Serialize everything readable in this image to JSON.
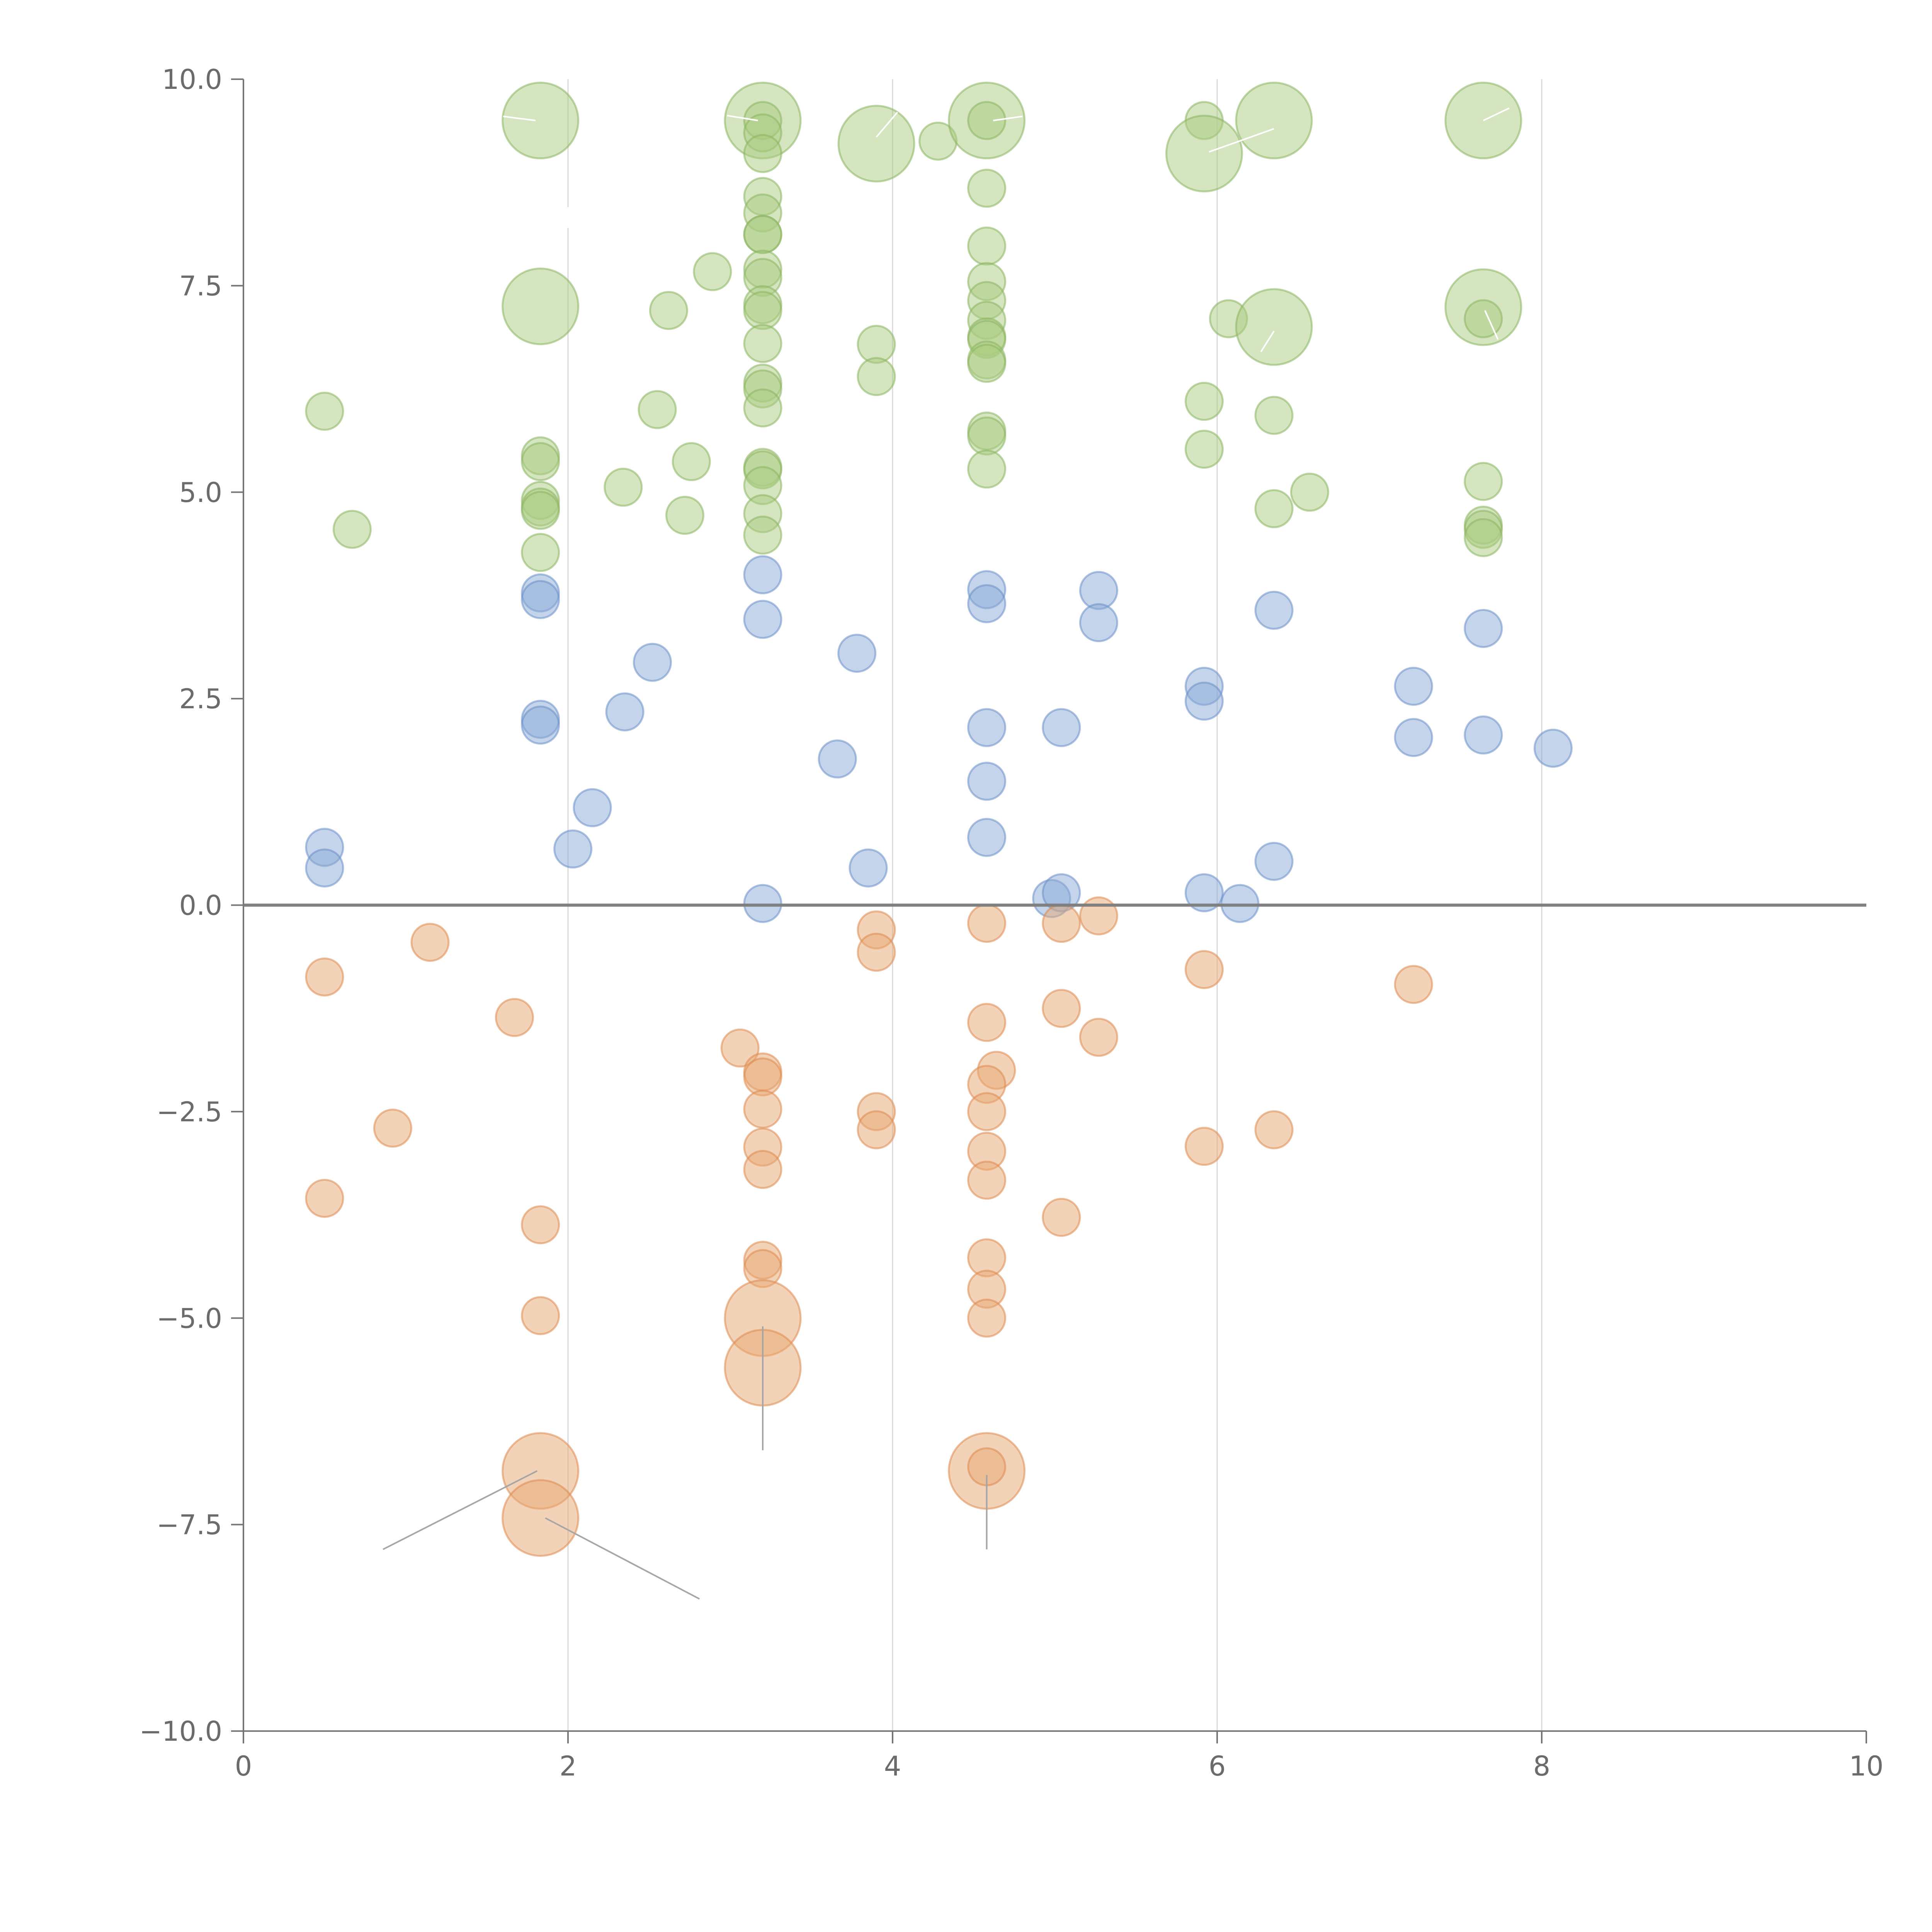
{
  "chart_data": {
    "type": "scatter",
    "title": "",
    "xlabel": "",
    "ylabel": "",
    "xlim": [
      0,
      10
    ],
    "ylim": [
      -10,
      10
    ],
    "x_ticks": [
      0,
      2,
      4,
      6,
      8,
      10
    ],
    "y_ticks": [
      -10,
      -7.5,
      -5,
      -2.5,
      0,
      2.5,
      5,
      7.5,
      10
    ],
    "x_tick_labels": [
      "0",
      "2",
      "4",
      "6",
      "8",
      "10"
    ],
    "y_tick_labels": [
      "−10.0",
      "−7.5",
      "−5.0",
      "−2.5",
      "0.0",
      "2.5",
      "5.0",
      "7.5",
      "10.0"
    ],
    "grid_x": [
      2,
      4,
      6,
      8
    ],
    "zero_line": 0,
    "colors": {
      "green_fill": "#a9cb7f",
      "green_stroke": "#8ab460",
      "blue_fill": "#8aa9d6",
      "blue_stroke": "#6b8fc8",
      "orange_fill": "#e8a772",
      "orange_stroke": "#dd8a50",
      "axis": "#777777",
      "grid": "#d9d9d9",
      "zero_line": "#808080",
      "leader_white": "#ffffff",
      "leader_gray": "#a6a6a6",
      "label": "#ffffff"
    },
    "series": [
      {
        "name": "green",
        "color_key": "green",
        "points": [
          {
            "x": 0.5,
            "y": 5.98,
            "s": 1
          },
          {
            "x": 0.67,
            "y": 4.55,
            "s": 1
          },
          {
            "x": 1.83,
            "y": 9.5,
            "s": 2
          },
          {
            "x": 1.83,
            "y": 7.25,
            "s": 2
          },
          {
            "x": 1.83,
            "y": 5.44,
            "s": 1
          },
          {
            "x": 1.83,
            "y": 5.37,
            "s": 1
          },
          {
            "x": 1.83,
            "y": 4.9,
            "s": 1
          },
          {
            "x": 1.83,
            "y": 4.82,
            "s": 1
          },
          {
            "x": 1.83,
            "y": 4.78,
            "s": 1
          },
          {
            "x": 1.83,
            "y": 4.27,
            "s": 1
          },
          {
            "x": 2.34,
            "y": 5.06,
            "s": 1
          },
          {
            "x": 2.55,
            "y": 6.0,
            "s": 1
          },
          {
            "x": 2.62,
            "y": 7.2,
            "s": 1
          },
          {
            "x": 2.72,
            "y": 4.72,
            "s": 1
          },
          {
            "x": 2.76,
            "y": 5.37,
            "s": 1
          },
          {
            "x": 2.89,
            "y": 7.67,
            "s": 1
          },
          {
            "x": 3.2,
            "y": 9.5,
            "s": 2
          },
          {
            "x": 3.2,
            "y": 9.5,
            "s": 1
          },
          {
            "x": 3.2,
            "y": 9.35,
            "s": 1
          },
          {
            "x": 3.2,
            "y": 9.1,
            "s": 1
          },
          {
            "x": 3.2,
            "y": 8.58,
            "s": 1
          },
          {
            "x": 3.2,
            "y": 8.38,
            "s": 1
          },
          {
            "x": 3.2,
            "y": 8.12,
            "s": 1
          },
          {
            "x": 3.2,
            "y": 8.12,
            "s": 1
          },
          {
            "x": 3.2,
            "y": 7.7,
            "s": 1
          },
          {
            "x": 3.2,
            "y": 7.6,
            "s": 1
          },
          {
            "x": 3.2,
            "y": 7.27,
            "s": 1
          },
          {
            "x": 3.2,
            "y": 7.2,
            "s": 1
          },
          {
            "x": 3.2,
            "y": 6.8,
            "s": 1
          },
          {
            "x": 3.2,
            "y": 6.32,
            "s": 1
          },
          {
            "x": 3.2,
            "y": 6.25,
            "s": 1
          },
          {
            "x": 3.2,
            "y": 6.02,
            "s": 1
          },
          {
            "x": 3.2,
            "y": 5.3,
            "s": 1
          },
          {
            "x": 3.2,
            "y": 5.27,
            "s": 1
          },
          {
            "x": 3.2,
            "y": 5.08,
            "s": 1
          },
          {
            "x": 3.2,
            "y": 4.74,
            "s": 1
          },
          {
            "x": 3.2,
            "y": 4.48,
            "s": 1
          },
          {
            "x": 3.9,
            "y": 9.22,
            "s": 2
          },
          {
            "x": 3.9,
            "y": 6.79,
            "s": 1
          },
          {
            "x": 3.9,
            "y": 6.4,
            "s": 1
          },
          {
            "x": 4.28,
            "y": 9.25,
            "s": 1
          },
          {
            "x": 4.58,
            "y": 9.5,
            "s": 2
          },
          {
            "x": 4.58,
            "y": 9.5,
            "s": 1
          },
          {
            "x": 4.58,
            "y": 8.68,
            "s": 1
          },
          {
            "x": 4.58,
            "y": 7.98,
            "s": 1
          },
          {
            "x": 4.58,
            "y": 7.55,
            "s": 1
          },
          {
            "x": 4.58,
            "y": 7.32,
            "s": 1
          },
          {
            "x": 4.58,
            "y": 7.08,
            "s": 1
          },
          {
            "x": 4.58,
            "y": 6.88,
            "s": 1
          },
          {
            "x": 4.58,
            "y": 6.85,
            "s": 1
          },
          {
            "x": 4.58,
            "y": 6.6,
            "s": 1
          },
          {
            "x": 4.58,
            "y": 6.56,
            "s": 1
          },
          {
            "x": 4.58,
            "y": 5.74,
            "s": 1
          },
          {
            "x": 4.58,
            "y": 5.68,
            "s": 1
          },
          {
            "x": 4.58,
            "y": 5.28,
            "s": 1
          },
          {
            "x": 5.92,
            "y": 9.5,
            "s": 1
          },
          {
            "x": 5.92,
            "y": 9.1,
            "s": 2
          },
          {
            "x": 5.92,
            "y": 6.1,
            "s": 1
          },
          {
            "x": 5.92,
            "y": 5.52,
            "s": 1
          },
          {
            "x": 6.07,
            "y": 7.1,
            "s": 1
          },
          {
            "x": 6.35,
            "y": 9.5,
            "s": 2
          },
          {
            "x": 6.35,
            "y": 7.0,
            "s": 2
          },
          {
            "x": 6.35,
            "y": 5.93,
            "s": 1
          },
          {
            "x": 6.35,
            "y": 4.8,
            "s": 1
          },
          {
            "x": 6.57,
            "y": 5.0,
            "s": 1
          },
          {
            "x": 7.64,
            "y": 9.5,
            "s": 2
          },
          {
            "x": 7.64,
            "y": 7.24,
            "s": 2
          },
          {
            "x": 7.64,
            "y": 7.1,
            "s": 1
          },
          {
            "x": 7.64,
            "y": 5.13,
            "s": 1
          },
          {
            "x": 7.64,
            "y": 4.6,
            "s": 1
          },
          {
            "x": 7.64,
            "y": 4.55,
            "s": 1
          },
          {
            "x": 7.64,
            "y": 4.45,
            "s": 1
          }
        ]
      },
      {
        "name": "blue",
        "color_key": "blue",
        "points": [
          {
            "x": 0.5,
            "y": 0.7,
            "s": 1
          },
          {
            "x": 0.5,
            "y": 0.45,
            "s": 1
          },
          {
            "x": 1.83,
            "y": 3.78,
            "s": 1
          },
          {
            "x": 1.83,
            "y": 3.7,
            "s": 1
          },
          {
            "x": 1.83,
            "y": 2.25,
            "s": 1
          },
          {
            "x": 1.83,
            "y": 2.18,
            "s": 1
          },
          {
            "x": 2.03,
            "y": 0.68,
            "s": 1
          },
          {
            "x": 2.15,
            "y": 1.18,
            "s": 1
          },
          {
            "x": 2.35,
            "y": 2.34,
            "s": 1
          },
          {
            "x": 2.52,
            "y": 2.94,
            "s": 1
          },
          {
            "x": 3.2,
            "y": 4.0,
            "s": 1
          },
          {
            "x": 3.2,
            "y": 3.46,
            "s": 1
          },
          {
            "x": 3.2,
            "y": 0.02,
            "s": 1
          },
          {
            "x": 3.66,
            "y": 1.77,
            "s": 1
          },
          {
            "x": 3.78,
            "y": 3.05,
            "s": 1
          },
          {
            "x": 3.85,
            "y": 0.45,
            "s": 1
          },
          {
            "x": 4.58,
            "y": 3.82,
            "s": 1
          },
          {
            "x": 4.58,
            "y": 3.65,
            "s": 1
          },
          {
            "x": 4.58,
            "y": 2.15,
            "s": 1
          },
          {
            "x": 4.58,
            "y": 1.5,
            "s": 1
          },
          {
            "x": 4.58,
            "y": 0.82,
            "s": 1
          },
          {
            "x": 4.98,
            "y": 0.08,
            "s": 1
          },
          {
            "x": 5.04,
            "y": 2.15,
            "s": 1
          },
          {
            "x": 5.04,
            "y": 0.15,
            "s": 1
          },
          {
            "x": 5.27,
            "y": 3.81,
            "s": 1
          },
          {
            "x": 5.27,
            "y": 3.42,
            "s": 1
          },
          {
            "x": 5.92,
            "y": 2.65,
            "s": 1
          },
          {
            "x": 5.92,
            "y": 2.47,
            "s": 1
          },
          {
            "x": 5.92,
            "y": 0.15,
            "s": 1
          },
          {
            "x": 6.14,
            "y": 0.02,
            "s": 1
          },
          {
            "x": 6.35,
            "y": 3.57,
            "s": 1
          },
          {
            "x": 6.35,
            "y": 0.53,
            "s": 1
          },
          {
            "x": 7.21,
            "y": 2.65,
            "s": 1
          },
          {
            "x": 7.21,
            "y": 2.03,
            "s": 1
          },
          {
            "x": 7.64,
            "y": 3.35,
            "s": 1
          },
          {
            "x": 7.64,
            "y": 2.06,
            "s": 1
          },
          {
            "x": 8.07,
            "y": 1.9,
            "s": 1
          }
        ]
      },
      {
        "name": "orange",
        "color_key": "orange",
        "points": [
          {
            "x": 0.5,
            "y": -0.87,
            "s": 1
          },
          {
            "x": 0.5,
            "y": -3.55,
            "s": 1
          },
          {
            "x": 0.92,
            "y": -2.7,
            "s": 1
          },
          {
            "x": 1.15,
            "y": -0.45,
            "s": 1
          },
          {
            "x": 1.67,
            "y": -1.36,
            "s": 1
          },
          {
            "x": 1.83,
            "y": -3.87,
            "s": 1
          },
          {
            "x": 1.83,
            "y": -4.97,
            "s": 1
          },
          {
            "x": 1.83,
            "y": -6.85,
            "s": 2
          },
          {
            "x": 1.83,
            "y": -7.42,
            "s": 2
          },
          {
            "x": 3.06,
            "y": -1.73,
            "s": 1
          },
          {
            "x": 3.2,
            "y": -2.02,
            "s": 1
          },
          {
            "x": 3.2,
            "y": -2.08,
            "s": 1
          },
          {
            "x": 3.2,
            "y": -2.47,
            "s": 1
          },
          {
            "x": 3.2,
            "y": -2.93,
            "s": 1
          },
          {
            "x": 3.2,
            "y": -3.2,
            "s": 1
          },
          {
            "x": 3.2,
            "y": -4.3,
            "s": 1
          },
          {
            "x": 3.2,
            "y": -4.4,
            "s": 1
          },
          {
            "x": 3.2,
            "y": -5.0,
            "s": 2
          },
          {
            "x": 3.2,
            "y": -5.6,
            "s": 2
          },
          {
            "x": 3.9,
            "y": -0.3,
            "s": 1
          },
          {
            "x": 3.9,
            "y": -0.57,
            "s": 1
          },
          {
            "x": 3.9,
            "y": -2.5,
            "s": 1
          },
          {
            "x": 3.9,
            "y": -2.72,
            "s": 1
          },
          {
            "x": 4.58,
            "y": -0.22,
            "s": 1
          },
          {
            "x": 4.58,
            "y": -1.42,
            "s": 1
          },
          {
            "x": 4.64,
            "y": -2.0,
            "s": 1
          },
          {
            "x": 4.58,
            "y": -2.17,
            "s": 1
          },
          {
            "x": 4.58,
            "y": -2.5,
            "s": 1
          },
          {
            "x": 4.58,
            "y": -2.98,
            "s": 1
          },
          {
            "x": 4.58,
            "y": -3.33,
            "s": 1
          },
          {
            "x": 4.58,
            "y": -4.27,
            "s": 1
          },
          {
            "x": 4.58,
            "y": -4.65,
            "s": 1
          },
          {
            "x": 4.58,
            "y": -5.0,
            "s": 1
          },
          {
            "x": 4.58,
            "y": -6.85,
            "s": 2
          },
          {
            "x": 4.58,
            "y": -6.8,
            "s": 1
          },
          {
            "x": 5.04,
            "y": -0.22,
            "s": 1
          },
          {
            "x": 5.04,
            "y": -1.25,
            "s": 1
          },
          {
            "x": 5.04,
            "y": -3.78,
            "s": 1
          },
          {
            "x": 5.27,
            "y": -0.13,
            "s": 1
          },
          {
            "x": 5.27,
            "y": -1.6,
            "s": 1
          },
          {
            "x": 5.92,
            "y": -0.78,
            "s": 1
          },
          {
            "x": 5.92,
            "y": -2.92,
            "s": 1
          },
          {
            "x": 6.35,
            "y": -2.72,
            "s": 1
          },
          {
            "x": 7.21,
            "y": -0.96,
            "s": 1
          }
        ]
      }
    ],
    "annotations": [
      {
        "text": "",
        "x1": 1.8,
        "y1": 9.5,
        "x2": 1.6,
        "y2": 9.55,
        "color": "leader_white"
      },
      {
        "text": "",
        "x1": 2.0,
        "y1": 8.45,
        "x2": 2.0,
        "y2": 8.2,
        "color": "leader_white"
      },
      {
        "text": "",
        "x1": 3.17,
        "y1": 9.5,
        "x2": 2.98,
        "y2": 9.56,
        "color": "leader_white"
      },
      {
        "text": "",
        "x1": 3.9,
        "y1": 9.3,
        "x2": 4.03,
        "y2": 9.6,
        "color": "leader_white"
      },
      {
        "text": "",
        "x1": 4.62,
        "y1": 9.5,
        "x2": 4.8,
        "y2": 9.55,
        "color": "leader_white"
      },
      {
        "text": "",
        "x1": 5.95,
        "y1": 9.12,
        "x2": 6.35,
        "y2": 9.4,
        "color": "leader_white"
      },
      {
        "text": "",
        "x1": 6.35,
        "y1": 6.95,
        "x2": 6.27,
        "y2": 6.7,
        "color": "leader_white"
      },
      {
        "text": "",
        "x1": 7.64,
        "y1": 9.5,
        "x2": 7.8,
        "y2": 9.65,
        "color": "leader_white"
      },
      {
        "text": "",
        "x1": 7.65,
        "y1": 7.2,
        "x2": 7.73,
        "y2": 6.85,
        "color": "leader_white"
      },
      {
        "text": "",
        "x1": 1.81,
        "y1": -6.85,
        "x2": 0.86,
        "y2": -7.8,
        "color": "leader_gray"
      },
      {
        "text": "",
        "x1": 1.86,
        "y1": -7.42,
        "x2": 2.81,
        "y2": -8.4,
        "color": "leader_gray"
      },
      {
        "text": "",
        "x1": 3.2,
        "y1": -5.1,
        "x2": 3.2,
        "y2": -6.6,
        "color": "leader_gray"
      },
      {
        "text": "",
        "x1": 4.58,
        "y1": -6.9,
        "x2": 4.58,
        "y2": -7.8,
        "color": "leader_gray"
      }
    ]
  }
}
